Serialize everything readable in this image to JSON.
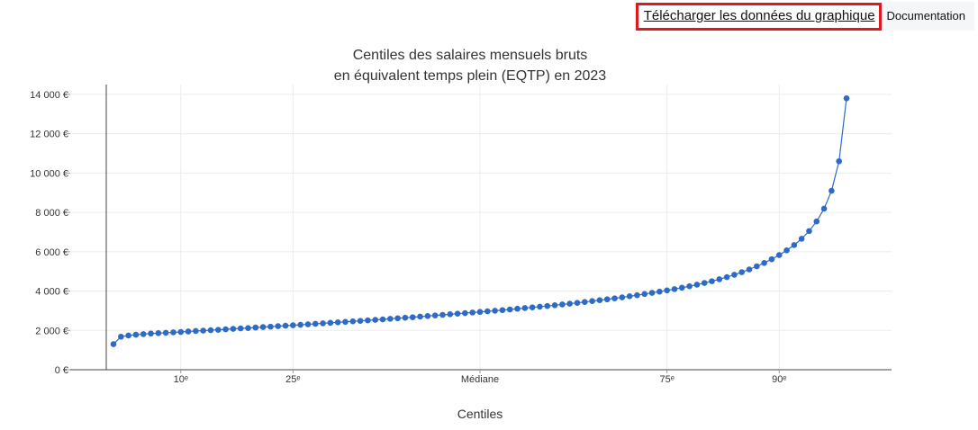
{
  "toolbar": {
    "download_label": "Télécharger les données du graphique",
    "documentation_label": "Documentation"
  },
  "chart_data": {
    "type": "line",
    "title_line1": "Centiles des salaires mensuels bruts",
    "title_line2": "en équivalent temps plein (EQTP) en 2023",
    "xlabel": "Centiles",
    "ylabel": "",
    "xlim": [
      0,
      100
    ],
    "ylim": [
      0,
      14500
    ],
    "grid": true,
    "color": "#2e6bc6",
    "y_ticks": [
      {
        "value": 0,
        "label": "0 €"
      },
      {
        "value": 2000,
        "label": "2 000 €"
      },
      {
        "value": 4000,
        "label": "4 000 €"
      },
      {
        "value": 6000,
        "label": "6 000 €"
      },
      {
        "value": 8000,
        "label": "8 000 €"
      },
      {
        "value": 10000,
        "label": "10 000 €"
      },
      {
        "value": 12000,
        "label": "12 000 €"
      },
      {
        "value": 14000,
        "label": "14 000 €"
      }
    ],
    "x_ticks": [
      {
        "value": 10,
        "label": "10ᵉ"
      },
      {
        "value": 25,
        "label": "25ᵉ"
      },
      {
        "value": 50,
        "label": "Médiane"
      },
      {
        "value": 75,
        "label": "75ᵉ"
      },
      {
        "value": 90,
        "label": "90ᵉ"
      }
    ],
    "x": [
      1,
      2,
      3,
      4,
      5,
      6,
      7,
      8,
      9,
      10,
      11,
      12,
      13,
      14,
      15,
      16,
      17,
      18,
      19,
      20,
      21,
      22,
      23,
      24,
      25,
      26,
      27,
      28,
      29,
      30,
      31,
      32,
      33,
      34,
      35,
      36,
      37,
      38,
      39,
      40,
      41,
      42,
      43,
      44,
      45,
      46,
      47,
      48,
      49,
      50,
      51,
      52,
      53,
      54,
      55,
      56,
      57,
      58,
      59,
      60,
      61,
      62,
      63,
      64,
      65,
      66,
      67,
      68,
      69,
      70,
      71,
      72,
      73,
      74,
      75,
      76,
      77,
      78,
      79,
      80,
      81,
      82,
      83,
      84,
      85,
      86,
      87,
      88,
      89,
      90,
      91,
      92,
      93,
      94,
      95,
      96,
      97,
      98,
      99
    ],
    "values": [
      1300,
      1680,
      1740,
      1780,
      1810,
      1840,
      1860,
      1880,
      1900,
      1920,
      1945,
      1970,
      1990,
      2010,
      2030,
      2055,
      2080,
      2100,
      2120,
      2145,
      2170,
      2190,
      2215,
      2240,
      2260,
      2285,
      2310,
      2335,
      2360,
      2385,
      2410,
      2435,
      2460,
      2485,
      2510,
      2535,
      2560,
      2590,
      2615,
      2645,
      2670,
      2700,
      2730,
      2760,
      2790,
      2820,
      2850,
      2880,
      2910,
      2940,
      2970,
      3000,
      3030,
      3065,
      3100,
      3135,
      3170,
      3205,
      3240,
      3280,
      3320,
      3360,
      3400,
      3445,
      3490,
      3535,
      3580,
      3630,
      3680,
      3735,
      3790,
      3850,
      3910,
      3970,
      4035,
      4100,
      4170,
      4245,
      4325,
      4410,
      4500,
      4600,
      4710,
      4830,
      4960,
      5100,
      5260,
      5430,
      5620,
      5830,
      6070,
      6340,
      6660,
      7050,
      7540,
      8190,
      9100,
      10600,
      13800
    ]
  }
}
